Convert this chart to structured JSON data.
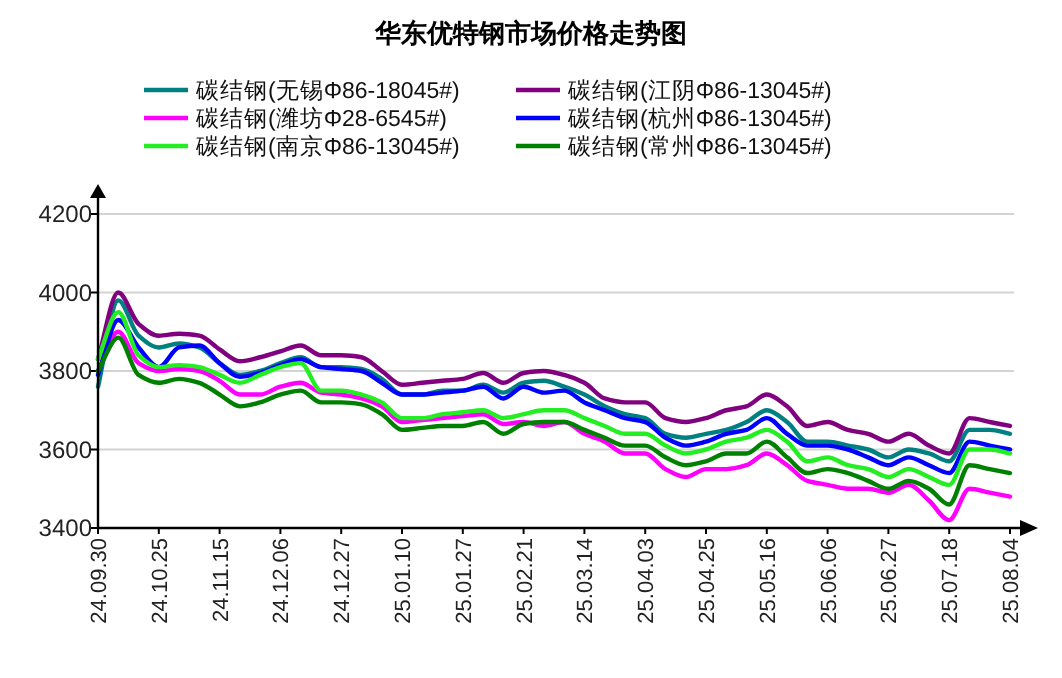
{
  "chart_data": {
    "type": "line",
    "title": "华东优特钢市场价格走势图",
    "categories": [
      "24.09.30",
      null,
      null,
      "24.10.25",
      null,
      null,
      "24.11.15",
      null,
      null,
      "24.12.06",
      null,
      null,
      "24.12.27",
      null,
      null,
      "25.01.10",
      null,
      null,
      "25.01.27",
      null,
      null,
      "25.02.21",
      null,
      null,
      "25.03.14",
      null,
      null,
      "25.04.03",
      null,
      null,
      "25.04.25",
      null,
      null,
      "25.05.16",
      null,
      null,
      "25.06.06",
      null,
      null,
      "25.06.27",
      null,
      null,
      "25.07.18",
      null,
      null,
      "25.08.04"
    ],
    "series": [
      {
        "name": "碳结钢(无锡Φ86-18045#)",
        "color": "#008080",
        "values": [
          3760,
          3980,
          3890,
          3860,
          3870,
          3860,
          3820,
          3790,
          3800,
          3820,
          3835,
          3810,
          3810,
          3805,
          3780,
          3740,
          3740,
          3750,
          3750,
          3765,
          3745,
          3770,
          3775,
          3760,
          3740,
          3710,
          3690,
          3680,
          3640,
          3630,
          3640,
          3650,
          3670,
          3700,
          3670,
          3620,
          3620,
          3610,
          3600,
          3580,
          3600,
          3590,
          3570,
          3650,
          3650,
          3640
        ]
      },
      {
        "name": "碳结钢(江阴Φ86-13045#)",
        "color": "#800080",
        "values": [
          3830,
          4000,
          3920,
          3890,
          3895,
          3890,
          3855,
          3825,
          3835,
          3850,
          3865,
          3840,
          3840,
          3835,
          3800,
          3765,
          3770,
          3775,
          3780,
          3795,
          3770,
          3795,
          3800,
          3790,
          3770,
          3730,
          3720,
          3720,
          3680,
          3670,
          3680,
          3700,
          3710,
          3740,
          3710,
          3660,
          3670,
          3650,
          3640,
          3620,
          3640,
          3610,
          3590,
          3680,
          3670,
          3660
        ]
      },
      {
        "name": "碳结钢(潍坊Φ28-6545#)",
        "color": "#ff00ff",
        "values": [
          3800,
          3900,
          3820,
          3800,
          3805,
          3800,
          3775,
          3740,
          3740,
          3760,
          3770,
          3745,
          3740,
          3730,
          3710,
          3670,
          3675,
          3680,
          3685,
          3690,
          3665,
          3670,
          3660,
          3670,
          3640,
          3620,
          3590,
          3590,
          3550,
          3530,
          3550,
          3550,
          3560,
          3590,
          3560,
          3520,
          3510,
          3500,
          3500,
          3490,
          3510,
          3470,
          3420,
          3500,
          3490,
          3480
        ]
      },
      {
        "name": "碳结钢(杭州Φ86-13045#)",
        "color": "#0000ff",
        "values": [
          3790,
          3930,
          3860,
          3810,
          3860,
          3865,
          3820,
          3785,
          3795,
          3815,
          3830,
          3810,
          3805,
          3800,
          3770,
          3740,
          3740,
          3745,
          3750,
          3760,
          3730,
          3760,
          3745,
          3750,
          3720,
          3700,
          3680,
          3670,
          3630,
          3610,
          3620,
          3640,
          3650,
          3680,
          3640,
          3610,
          3610,
          3600,
          3580,
          3560,
          3580,
          3560,
          3540,
          3620,
          3610,
          3600
        ]
      },
      {
        "name": "碳结钢(南京Φ86-13045#)",
        "color": "#22ee22",
        "values": [
          3830,
          3950,
          3840,
          3810,
          3815,
          3810,
          3790,
          3770,
          3790,
          3810,
          3820,
          3750,
          3750,
          3740,
          3720,
          3680,
          3680,
          3690,
          3695,
          3700,
          3680,
          3690,
          3700,
          3700,
          3680,
          3660,
          3640,
          3640,
          3610,
          3590,
          3600,
          3620,
          3630,
          3650,
          3620,
          3570,
          3580,
          3560,
          3550,
          3530,
          3550,
          3530,
          3510,
          3600,
          3600,
          3590
        ]
      },
      {
        "name": "碳结钢(常州Φ86-13045#)",
        "color": "#008000",
        "values": [
          3800,
          3885,
          3790,
          3770,
          3780,
          3770,
          3740,
          3710,
          3720,
          3740,
          3750,
          3720,
          3720,
          3715,
          3690,
          3650,
          3655,
          3660,
          3660,
          3670,
          3640,
          3665,
          3670,
          3670,
          3650,
          3630,
          3610,
          3610,
          3580,
          3560,
          3570,
          3590,
          3590,
          3620,
          3580,
          3540,
          3550,
          3540,
          3520,
          3500,
          3520,
          3500,
          3460,
          3560,
          3550,
          3540
        ]
      }
    ],
    "ylim": [
      3400,
      4200
    ],
    "yticks": [
      3400,
      3600,
      3800,
      4000,
      4200
    ],
    "grid": "y",
    "legend": "top",
    "marker": "none",
    "line_style": "solid"
  }
}
